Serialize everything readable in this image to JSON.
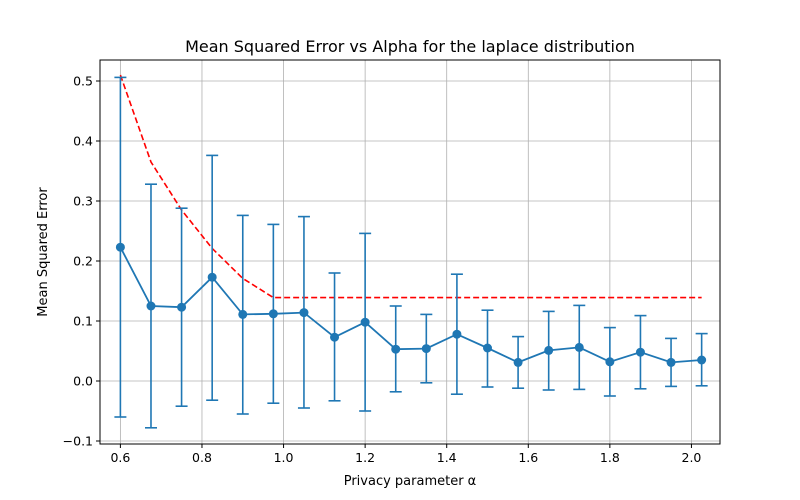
{
  "chart_data": {
    "type": "line",
    "title": "Mean Squared Error vs Alpha for the laplace distribution",
    "xlabel": "Privacy parameter α",
    "ylabel": "Mean Squared Error",
    "xlim": [
      0.55,
      2.07
    ],
    "ylim": [
      -0.105,
      0.535
    ],
    "xticks": [
      0.6,
      0.8,
      1.0,
      1.2,
      1.4,
      1.6,
      1.8,
      2.0
    ],
    "xtick_labels": [
      "0.6",
      "0.8",
      "1.0",
      "1.2",
      "1.4",
      "1.6",
      "1.8",
      "2.0"
    ],
    "yticks": [
      -0.1,
      0.0,
      0.1,
      0.2,
      0.3,
      0.4,
      0.5
    ],
    "ytick_labels": [
      "−0.1",
      "0.0",
      "0.1",
      "0.2",
      "0.3",
      "0.4",
      "0.5"
    ],
    "grid": true,
    "series": [
      {
        "style": "errorbar",
        "color": "#1f77b4",
        "x": [
          0.6,
          0.675,
          0.75,
          0.825,
          0.9,
          0.975,
          1.05,
          1.125,
          1.2,
          1.275,
          1.35,
          1.425,
          1.5,
          1.575,
          1.65,
          1.725,
          1.8,
          1.875,
          1.95,
          2.025
        ],
        "y": [
          0.223,
          0.125,
          0.123,
          0.173,
          0.111,
          0.112,
          0.114,
          0.073,
          0.098,
          0.053,
          0.054,
          0.078,
          0.055,
          0.031,
          0.051,
          0.056,
          0.032,
          0.048,
          0.031,
          0.035
        ],
        "yerr_low": [
          -0.06,
          -0.078,
          -0.042,
          -0.032,
          -0.055,
          -0.037,
          -0.045,
          -0.033,
          -0.05,
          -0.018,
          -0.003,
          -0.022,
          -0.01,
          -0.012,
          -0.015,
          -0.014,
          -0.025,
          -0.013,
          -0.009,
          -0.008
        ],
        "yerr_high": [
          0.506,
          0.328,
          0.288,
          0.376,
          0.276,
          0.261,
          0.274,
          0.18,
          0.246,
          0.125,
          0.111,
          0.178,
          0.118,
          0.074,
          0.116,
          0.126,
          0.089,
          0.109,
          0.071,
          0.079
        ]
      },
      {
        "style": "dashed",
        "color": "#ff0000",
        "x": [
          0.6,
          0.675,
          0.75,
          0.825,
          0.9,
          0.975,
          1.05,
          1.125,
          1.2,
          1.275,
          1.35,
          1.425,
          1.5,
          1.575,
          1.65,
          1.725,
          1.8,
          1.875,
          1.95,
          2.025
        ],
        "y": [
          0.51,
          0.365,
          0.285,
          0.221,
          0.171,
          0.139,
          0.139,
          0.139,
          0.139,
          0.139,
          0.139,
          0.139,
          0.139,
          0.139,
          0.139,
          0.139,
          0.139,
          0.139,
          0.139,
          0.139
        ]
      }
    ]
  }
}
